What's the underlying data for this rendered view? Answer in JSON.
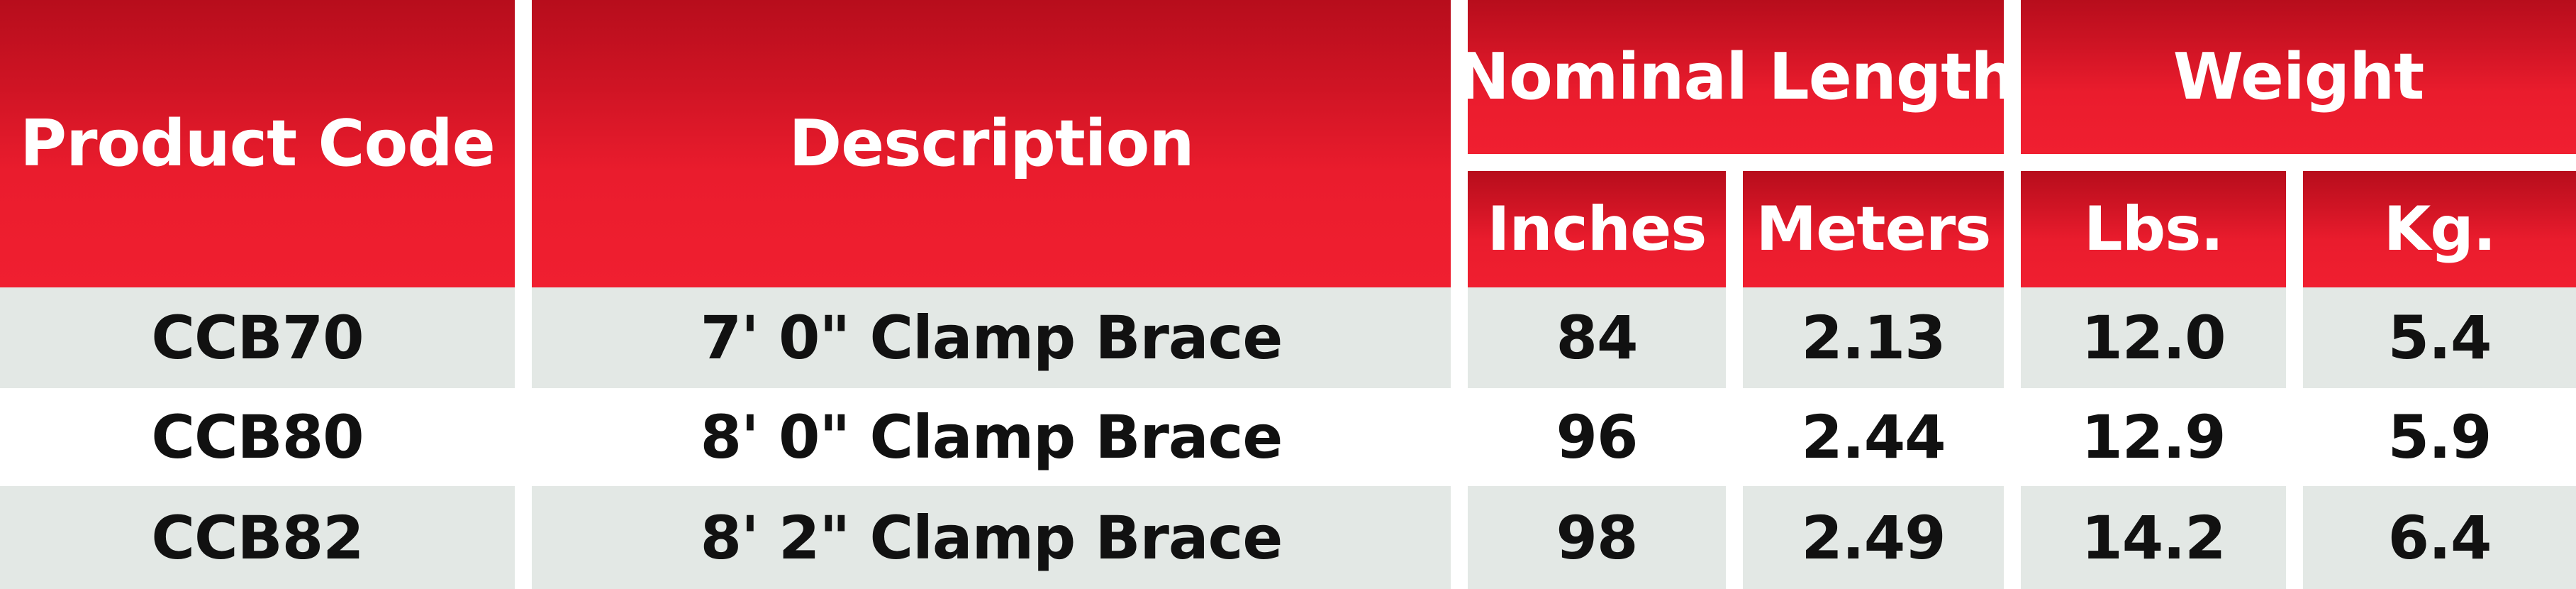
{
  "colors": {
    "header_red": "#e81b2c",
    "header_red_dark": "#b70d1c",
    "row_shade": "#e3e8e5",
    "row_plain": "#ffffff",
    "text_dark": "#111111",
    "header_text": "#ffffff"
  },
  "table": {
    "headers": {
      "product_code": "Product Code",
      "description": "Description",
      "nominal_length": "Nominal Length",
      "weight": "Weight",
      "inches": "Inches",
      "meters": "Meters",
      "lbs": "Lbs.",
      "kg": "Kg."
    },
    "rows": [
      {
        "code": "CCB70",
        "description": "7' 0\" Clamp Brace",
        "inches": "84",
        "meters": "2.13",
        "lbs": "12.0",
        "kg": "5.4"
      },
      {
        "code": "CCB80",
        "description": "8' 0\" Clamp Brace",
        "inches": "96",
        "meters": "2.44",
        "lbs": "12.9",
        "kg": "5.9"
      },
      {
        "code": "CCB82",
        "description": "8' 2\" Clamp Brace",
        "inches": "98",
        "meters": "2.49",
        "lbs": "14.2",
        "kg": "6.4"
      }
    ]
  }
}
